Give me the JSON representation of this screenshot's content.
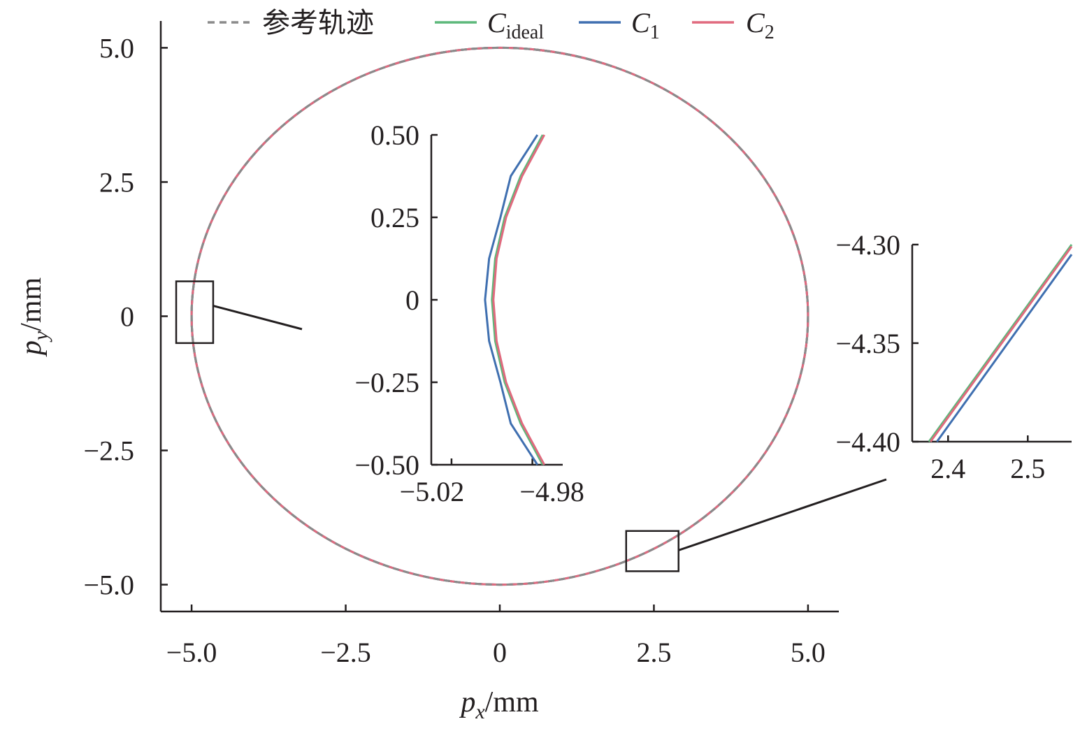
{
  "chart_data": [
    {
      "type": "line",
      "xlabel": {
        "var": "p",
        "sub": "x",
        "unit": "/mm"
      },
      "ylabel": {
        "var": "p",
        "sub": "y",
        "unit": "/mm"
      },
      "xlim": [
        -5.5,
        5.5
      ],
      "ylim": [
        -5.5,
        5.5
      ],
      "xticks": [
        -5.0,
        -2.5,
        0,
        2.5,
        5.0
      ],
      "xtick_labels": [
        "−5.0",
        "−2.5",
        "0",
        "2.5",
        "5.0"
      ],
      "yticks": [
        -5.0,
        -2.5,
        0,
        2.5,
        5.0
      ],
      "ytick_labels": [
        "−5.0",
        "−2.5",
        "0",
        "2.5",
        "5.0"
      ],
      "grid": false,
      "legend_position": "top",
      "legend": [
        {
          "key": "ref",
          "text": "参考轨迹",
          "style": "dashed",
          "color": "#8a8a8a"
        },
        {
          "key": "ideal",
          "main": "C",
          "sub": "ideal",
          "style": "solid",
          "color": "#5cb87a"
        },
        {
          "key": "c1",
          "main": "C",
          "sub": "1",
          "style": "solid",
          "color": "#3f6fb0"
        },
        {
          "key": "c2",
          "main": "C",
          "sub": "2",
          "style": "solid",
          "color": "#e06a7e"
        }
      ],
      "series": [
        {
          "key": "ideal",
          "shape": "circle",
          "center": [
            0,
            0
          ],
          "radius": 5.0
        },
        {
          "key": "c1",
          "shape": "circle",
          "center": [
            0,
            0
          ],
          "radius": 5.0
        },
        {
          "key": "c2",
          "shape": "circle",
          "center": [
            0,
            0
          ],
          "radius": 5.0
        },
        {
          "key": "ref",
          "shape": "circle",
          "center": [
            0,
            0
          ],
          "radius": 5.0
        }
      ],
      "zoom_boxes": [
        {
          "x": [
            -5.25,
            -4.65
          ],
          "y": [
            -0.5,
            0.65
          ],
          "target": "inset-left"
        },
        {
          "x": [
            2.05,
            2.9
          ],
          "y": [
            -4.75,
            -4.0
          ],
          "target": "inset-right"
        }
      ]
    },
    {
      "id": "inset-left",
      "type": "line",
      "xlim": [
        -5.03,
        -4.965
      ],
      "ylim": [
        -0.5,
        0.5
      ],
      "xticks": [
        -5.02,
        -4.98
      ],
      "xtick_labels": [
        "−5.02",
        "−4.98"
      ],
      "yticks": [
        -0.5,
        -0.25,
        0,
        0.25,
        0.5
      ],
      "ytick_labels": [
        "−0.50",
        "−0.25",
        "0",
        "0.25",
        "0.50"
      ],
      "series": [
        {
          "key": "c1",
          "x": [
            -4.9775,
            -4.9907,
            -4.9958,
            -5.0014,
            -5.0034,
            -5.0014,
            -4.9958,
            -4.9907,
            -4.9775
          ],
          "y": [
            -0.5,
            -0.375,
            -0.25,
            -0.125,
            0,
            0.125,
            0.25,
            0.375,
            0.5
          ]
        },
        {
          "key": "ideal",
          "x": [
            -4.9749,
            -4.9858,
            -4.9937,
            -4.9984,
            -5.0,
            -4.9984,
            -4.9937,
            -4.9858,
            -4.9749
          ],
          "y": [
            -0.5,
            -0.375,
            -0.25,
            -0.125,
            0,
            0.125,
            0.25,
            0.375,
            0.5
          ]
        },
        {
          "key": "c2",
          "x": [
            -4.9741,
            -4.9851,
            -4.993,
            -4.9977,
            -4.9993,
            -4.9977,
            -4.993,
            -4.9851,
            -4.9741
          ],
          "y": [
            -0.5,
            -0.375,
            -0.25,
            -0.125,
            0,
            0.125,
            0.25,
            0.375,
            0.5
          ]
        }
      ]
    },
    {
      "id": "inset-right",
      "type": "line",
      "xlim": [
        2.355,
        2.555
      ],
      "ylim": [
        -4.4,
        -4.3
      ],
      "xticks": [
        2.4,
        2.5
      ],
      "xtick_labels": [
        "2.4",
        "2.5"
      ],
      "yticks": [
        -4.3,
        -4.35,
        -4.4
      ],
      "ytick_labels": [
        "−4.30",
        "−4.35",
        "−4.40"
      ],
      "series": [
        {
          "key": "c1",
          "x": [
            2.386,
            2.555
          ],
          "y": [
            -4.4,
            -4.305
          ]
        },
        {
          "key": "ideal",
          "x": [
            2.376,
            2.555
          ],
          "y": [
            -4.4,
            -4.3
          ]
        },
        {
          "key": "c2",
          "x": [
            2.378,
            2.555
          ],
          "y": [
            -4.4,
            -4.301
          ]
        }
      ]
    }
  ]
}
